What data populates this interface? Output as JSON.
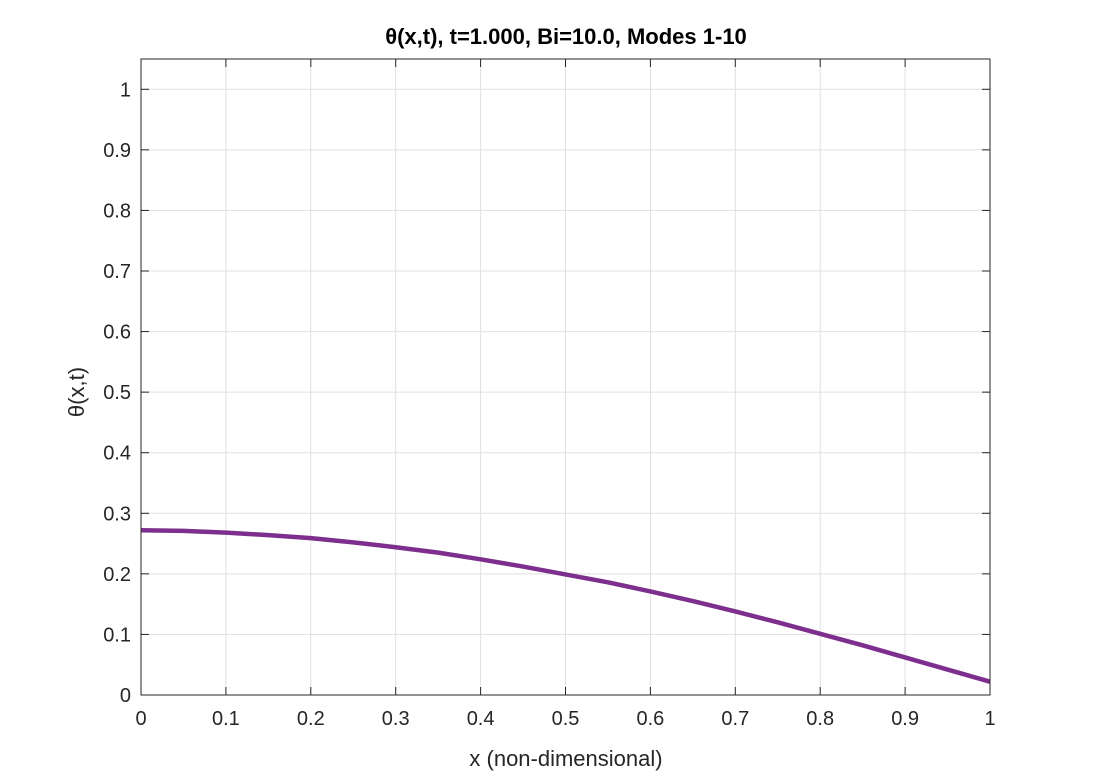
{
  "chart_data": {
    "type": "line",
    "title": "θ(x,t), t=1.000, Bi=10.0, Modes 1-10",
    "xlabel": "x (non-dimensional)",
    "ylabel": "θ(x,t)",
    "xlim": [
      0,
      1
    ],
    "ylim": [
      0,
      1.05
    ],
    "xticks": [
      0,
      0.1,
      0.2,
      0.3,
      0.4,
      0.5,
      0.6,
      0.7,
      0.8,
      0.9,
      1
    ],
    "xtick_labels": [
      "0",
      "0.1",
      "0.2",
      "0.3",
      "0.4",
      "0.5",
      "0.6",
      "0.7",
      "0.8",
      "0.9",
      "1"
    ],
    "yticks": [
      0,
      0.1,
      0.2,
      0.3,
      0.4,
      0.5,
      0.6,
      0.7,
      0.8,
      0.9,
      1
    ],
    "ytick_labels": [
      "0",
      "0.1",
      "0.2",
      "0.3",
      "0.4",
      "0.5",
      "0.6",
      "0.7",
      "0.8",
      "0.9",
      "1"
    ],
    "grid": true,
    "legend": "none",
    "series": [
      {
        "color": "#7E2F8E",
        "x": [
          0,
          0.05,
          0.1,
          0.15,
          0.2,
          0.25,
          0.3,
          0.35,
          0.4,
          0.45,
          0.5,
          0.55,
          0.6,
          0.65,
          0.7,
          0.75,
          0.8,
          0.85,
          0.9,
          0.95,
          1.0
        ],
        "y": [
          0.272,
          0.271,
          0.268,
          0.264,
          0.259,
          0.252,
          0.244,
          0.235,
          0.224,
          0.212,
          0.199,
          0.186,
          0.171,
          0.155,
          0.138,
          0.12,
          0.101,
          0.082,
          0.062,
          0.042,
          0.022
        ]
      }
    ]
  }
}
